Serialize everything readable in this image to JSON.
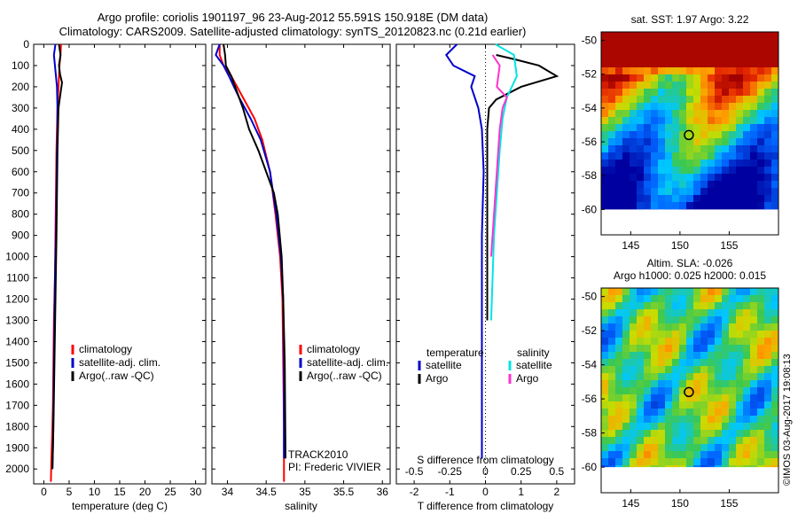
{
  "title_line1": "Argo profile: coriolis 1901197_96 23-Aug-2012 55.591S 150.918E (DM data)",
  "title_line2": "Climatology: CARS2009. Satellite-adjusted climatology: synTS_20120823.nc (0.21d earlier)",
  "credit": "©IMOS 03-Aug-2017 19:08:13",
  "colors": {
    "climatology": "#ff0000",
    "satellite": "#0000cc",
    "argo": "#000000",
    "sal_satellite": "#00e5e5",
    "sal_argo": "#ff33cc"
  },
  "chart_data": [
    {
      "type": "line",
      "xlabel": "temperature (deg C)",
      "xlim": [
        -2,
        32
      ],
      "xticks": [
        0,
        5,
        10,
        15,
        20,
        25,
        30
      ],
      "ylim": [
        2070,
        0
      ],
      "yticks": [
        0,
        100,
        200,
        300,
        400,
        500,
        600,
        700,
        800,
        900,
        1000,
        1100,
        1200,
        1300,
        1400,
        1500,
        1600,
        1700,
        1800,
        1900,
        2000
      ],
      "legend": [
        "climatology",
        "satellite-adj. clim.",
        "Argo(..raw -QC)"
      ],
      "series": [
        {
          "name": "climatology",
          "x": [
            3.4,
            3.3,
            3.1,
            2.9,
            2.7,
            2.6,
            2.5,
            2.4,
            2.3,
            2.2,
            2.0,
            1.9,
            1.8,
            1.7,
            1.5,
            1.4
          ],
          "y": [
            0,
            50,
            100,
            200,
            300,
            400,
            500,
            700,
            900,
            1100,
            1300,
            1500,
            1700,
            1800,
            1950,
            2060
          ]
        },
        {
          "name": "satellite-adj. clim.",
          "x": [
            2.3,
            2.0,
            2.2,
            2.6,
            2.7,
            2.7,
            2.6,
            2.5,
            2.4,
            2.2,
            2.1,
            2.0,
            1.9,
            1.8,
            1.7
          ],
          "y": [
            0,
            50,
            100,
            200,
            300,
            400,
            500,
            700,
            900,
            1100,
            1300,
            1500,
            1700,
            1900,
            2000
          ]
        },
        {
          "name": "Argo(..raw -QC)",
          "x": [
            3.0,
            3.3,
            3.0,
            3.2,
            3.6,
            3.3,
            2.9,
            2.8,
            2.7,
            2.6,
            2.5,
            2.3,
            2.1,
            1.9,
            1.7
          ],
          "y": [
            0,
            50,
            100,
            140,
            180,
            230,
            300,
            400,
            500,
            700,
            900,
            1200,
            1500,
            1800,
            2000
          ]
        }
      ]
    },
    {
      "type": "line",
      "xlabel": "salinity",
      "xlim": [
        33.8,
        36.1
      ],
      "xticks": [
        34,
        34.5,
        35,
        35.5,
        36
      ],
      "ylim": [
        2070,
        0
      ],
      "legend": [
        "climatology",
        "satellite-adj. clim.",
        "Argo(..raw -QC)"
      ],
      "annotations": [
        "TRACK2010",
        "PI: Frederic VIVIER"
      ],
      "series": [
        {
          "name": "climatology",
          "x": [
            33.9,
            33.9,
            33.95,
            34.05,
            34.2,
            34.35,
            34.45,
            34.55,
            34.62,
            34.68,
            34.71,
            34.72,
            34.73,
            34.73
          ],
          "y": [
            0,
            50,
            100,
            150,
            250,
            350,
            450,
            600,
            800,
            1000,
            1200,
            1500,
            1800,
            2060
          ]
        },
        {
          "name": "satellite-adj. clim.",
          "x": [
            33.9,
            33.85,
            33.95,
            34.02,
            34.15,
            34.3,
            34.43,
            34.55,
            34.63,
            34.69,
            34.72,
            34.73,
            34.73
          ],
          "y": [
            0,
            50,
            100,
            150,
            250,
            350,
            450,
            600,
            800,
            1000,
            1200,
            1500,
            1950
          ]
        },
        {
          "name": "Argo(..raw -QC)",
          "x": [
            33.95,
            33.97,
            33.98,
            34.05,
            34.1,
            34.2,
            34.28,
            34.4,
            34.5,
            34.6,
            34.65,
            34.7,
            34.72,
            34.74,
            34.75
          ],
          "y": [
            0,
            50,
            100,
            150,
            200,
            300,
            400,
            500,
            600,
            700,
            800,
            1000,
            1200,
            1500,
            1950
          ]
        }
      ]
    },
    {
      "type": "line",
      "xlabel": "T difference from climatology",
      "x2label": "S difference from climatology",
      "xlim": [
        -2.5,
        2.5
      ],
      "xticks": [
        -2,
        -1,
        0,
        1,
        2
      ],
      "x2ticks": [
        -0.5,
        -0.25,
        0,
        0.25,
        0.5
      ],
      "ylim": [
        2070,
        0
      ],
      "legend_titles": [
        "temperature",
        "salinity"
      ],
      "legend": [
        "satellite",
        "Argo",
        "satellite",
        "Argo"
      ],
      "series": [
        {
          "name": "temperature satellite",
          "x": [
            -0.8,
            -1.1,
            -0.9,
            -0.3,
            -0.4,
            -0.2,
            -0.1,
            -0.05,
            -0.1,
            -0.1,
            -0.1,
            -0.1,
            -0.1
          ],
          "y": [
            0,
            50,
            100,
            150,
            200,
            300,
            400,
            600,
            900,
            1200,
            1500,
            1800,
            1950
          ]
        },
        {
          "name": "temperature Argo",
          "x": [
            0.3,
            0.8,
            1.5,
            2.0,
            1.0,
            0.3,
            0.1,
            0.05,
            0.05,
            0.05,
            0.05
          ],
          "y": [
            50,
            70,
            100,
            150,
            200,
            260,
            300,
            400,
            600,
            900,
            1300
          ]
        },
        {
          "name": "salinity satellite",
          "x": [
            0.07,
            0.2,
            0.22,
            0.15,
            0.12,
            0.1,
            0.08,
            0.06,
            0.05,
            0.04
          ],
          "y": [
            0,
            50,
            150,
            250,
            350,
            500,
            700,
            900,
            1100,
            1300
          ]
        },
        {
          "name": "salinity Argo",
          "x": [
            0.05,
            0.1,
            0.08,
            0.15,
            0.12,
            0.1,
            0.08,
            0.06,
            0.04
          ],
          "y": [
            50,
            100,
            200,
            250,
            300,
            400,
            600,
            800,
            1000
          ]
        }
      ]
    },
    {
      "type": "heatmap",
      "title": "sat. SST: 1.97 Argo: 3.22",
      "xticks": [
        145,
        150,
        155
      ],
      "yticks": [
        -50,
        -52,
        -54,
        -56,
        -58,
        -60
      ],
      "xlim": [
        142,
        160
      ],
      "ylim": [
        -61.5,
        -49.5
      ],
      "marker": {
        "lon": 150.9,
        "lat": -55.6
      }
    },
    {
      "type": "heatmap",
      "title": "Altim. SLA: -0.026",
      "subtitle": "Argo h1000: 0.025 h2000: 0.015",
      "xticks": [
        145,
        150,
        155
      ],
      "yticks": [
        -50,
        -52,
        -54,
        -56,
        -58,
        -60
      ],
      "xlim": [
        142,
        160
      ],
      "ylim": [
        -61.5,
        -49.5
      ],
      "marker": {
        "lon": 150.9,
        "lat": -55.6
      }
    }
  ]
}
